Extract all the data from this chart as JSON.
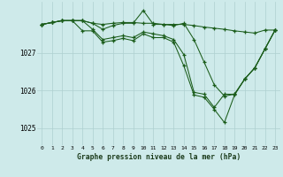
{
  "background_color": "#ceeaea",
  "grid_color": "#aed0d0",
  "line_color": "#1a5c1a",
  "ylim": [
    1024.55,
    1028.35
  ],
  "xlim": [
    -0.5,
    23.5
  ],
  "yticks": [
    1025,
    1026,
    1027
  ],
  "xticks": [
    0,
    1,
    2,
    3,
    4,
    5,
    6,
    7,
    8,
    9,
    10,
    11,
    12,
    13,
    14,
    15,
    16,
    17,
    18,
    19,
    20,
    21,
    22,
    23
  ],
  "xlabel": "Graphe pression niveau de la mer (hPa)",
  "series": [
    {
      "y": [
        1027.75,
        1027.8,
        1027.85,
        1027.85,
        1027.85,
        1027.78,
        1027.75,
        1027.78,
        1027.8,
        1027.8,
        1027.78,
        1027.78,
        1027.75,
        1027.75,
        1027.75,
        1027.72,
        1027.68,
        1027.65,
        1027.62,
        1027.58,
        1027.55,
        1027.52,
        1027.6,
        1027.6
      ]
    },
    {
      "y": [
        1027.75,
        1027.8,
        1027.85,
        1027.85,
        1027.85,
        1027.78,
        1027.62,
        1027.72,
        1027.78,
        1027.78,
        1028.12,
        1027.75,
        1027.75,
        1027.72,
        1027.78,
        1027.35,
        1026.75,
        1026.15,
        1025.85,
        1025.9,
        1026.3,
        1026.6,
        1027.1,
        1027.6
      ]
    },
    {
      "y": [
        1027.75,
        1027.8,
        1027.85,
        1027.85,
        1027.85,
        1027.62,
        1027.35,
        1027.4,
        1027.45,
        1027.4,
        1027.55,
        1027.5,
        1027.45,
        1027.35,
        1026.95,
        1025.95,
        1025.9,
        1025.55,
        1025.9,
        1025.9,
        1026.3,
        1026.6,
        1027.1,
        1027.6
      ]
    },
    {
      "y": [
        1027.75,
        1027.8,
        1027.85,
        1027.85,
        1027.58,
        1027.58,
        1027.28,
        1027.32,
        1027.38,
        1027.32,
        1027.5,
        1027.4,
        1027.4,
        1027.28,
        1026.65,
        1025.88,
        1025.82,
        1025.5,
        1025.15,
        1025.88,
        1026.3,
        1026.6,
        1027.1,
        1027.6
      ]
    }
  ]
}
